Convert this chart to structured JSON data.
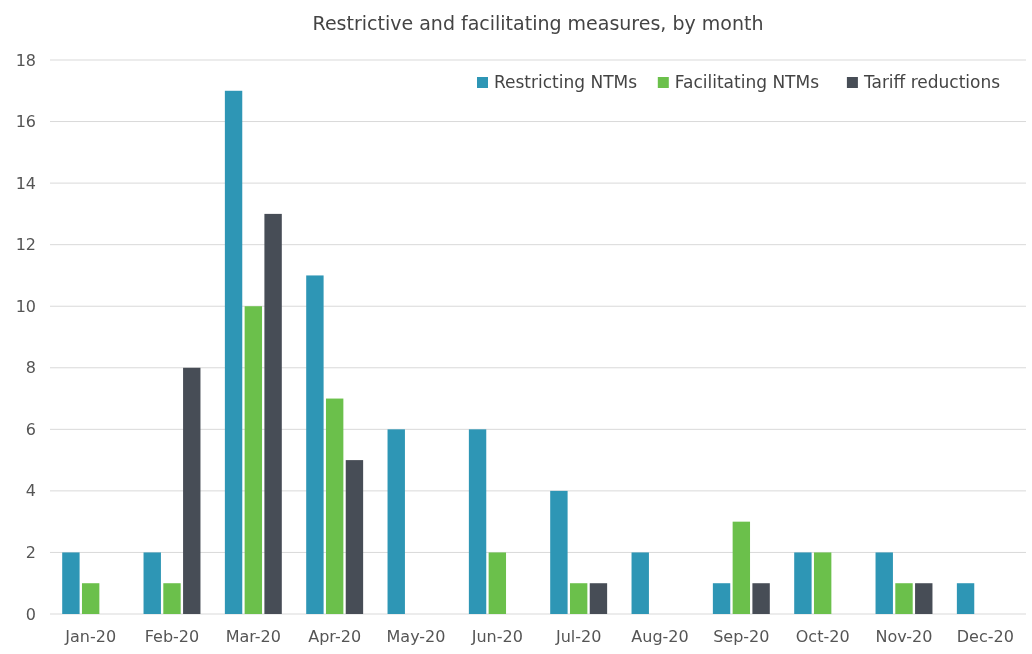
{
  "chart_data": {
    "type": "bar",
    "title": "Restrictive and facilitating measures, by month",
    "categories": [
      "Jan-20",
      "Feb-20",
      "Mar-20",
      "Apr-20",
      "May-20",
      "Jun-20",
      "Jul-20",
      "Aug-20",
      "Sep-20",
      "Oct-20",
      "Nov-20",
      "Dec-20"
    ],
    "series": [
      {
        "name": "Restricting NTMs",
        "color": "#2e96b5",
        "values": [
          2,
          2,
          17,
          11,
          6,
          6,
          4,
          2,
          1,
          2,
          2,
          1
        ]
      },
      {
        "name": "Facilitating NTMs",
        "color": "#6bc04b",
        "values": [
          1,
          1,
          10,
          7,
          0,
          2,
          1,
          0,
          3,
          2,
          1,
          0
        ]
      },
      {
        "name": "Tariff reductions",
        "color": "#474d56",
        "values": [
          0,
          8,
          13,
          5,
          0,
          0,
          1,
          0,
          1,
          0,
          1,
          0
        ]
      }
    ],
    "ylim": [
      0,
      18
    ],
    "yticks": [
      0,
      2,
      4,
      6,
      8,
      10,
      12,
      14,
      16,
      18
    ],
    "grid": "y",
    "legend": "top right"
  }
}
